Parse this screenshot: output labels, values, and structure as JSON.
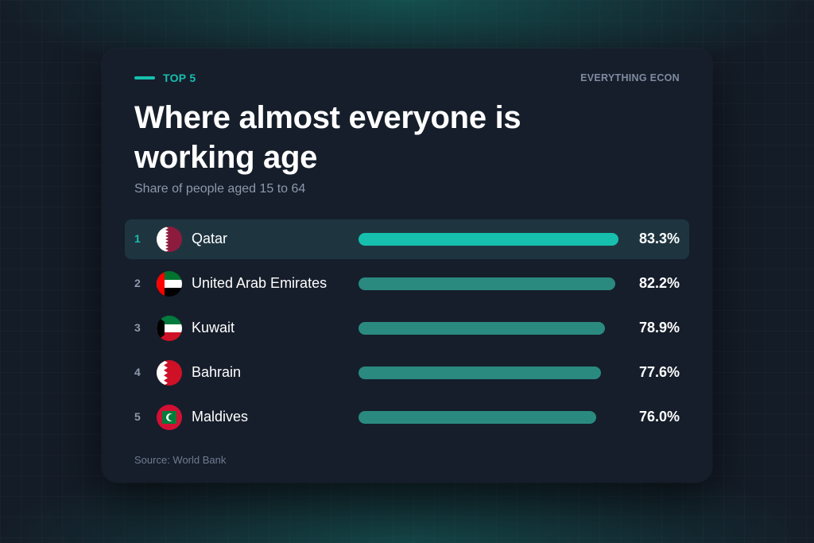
{
  "header": {
    "tag": "TOP 5",
    "brand": "EVERYTHING ECON"
  },
  "colors": {
    "accent": "#17bfae",
    "bar_default": "#2a8a80",
    "highlight_row": "#1e3540",
    "card": "#161e2b",
    "background": "#141c27"
  },
  "chart_data": {
    "type": "bar",
    "orientation": "horizontal",
    "title": "Where almost everyone is working age",
    "subtitle": "Share of people aged 15 to 64",
    "source": "Source: World Bank",
    "xlim": [
      0,
      84
    ],
    "unit": "%",
    "rows": [
      {
        "rank": "1",
        "country": "Qatar",
        "value": 83.3,
        "label": "83.3%",
        "flag": "qatar-flag-icon",
        "highlight": true
      },
      {
        "rank": "2",
        "country": "United Arab Emirates",
        "value": 82.2,
        "label": "82.2%",
        "flag": "uae-flag-icon",
        "highlight": false
      },
      {
        "rank": "3",
        "country": "Kuwait",
        "value": 78.9,
        "label": "78.9%",
        "flag": "kuwait-flag-icon",
        "highlight": false
      },
      {
        "rank": "4",
        "country": "Bahrain",
        "value": 77.6,
        "label": "77.6%",
        "flag": "bahrain-flag-icon",
        "highlight": false
      },
      {
        "rank": "5",
        "country": "Maldives",
        "value": 76.0,
        "label": "76.0%",
        "flag": "maldives-flag-icon",
        "highlight": false
      }
    ]
  }
}
